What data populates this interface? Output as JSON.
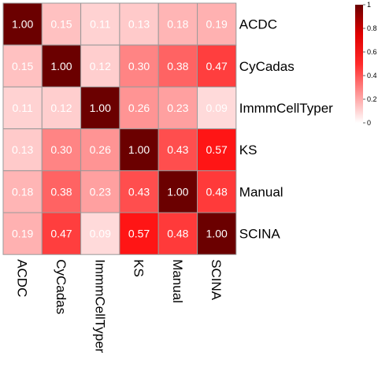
{
  "chart_data": {
    "type": "heatmap",
    "rows": [
      "ACDC",
      "CyCadas",
      "ImmmCellTyper",
      "KS",
      "Manual",
      "SCINA"
    ],
    "columns": [
      "ACDC",
      "CyCadas",
      "ImmmCellTyper",
      "KS",
      "Manual",
      "SCINA"
    ],
    "values": [
      [
        1.0,
        0.15,
        0.11,
        0.13,
        0.18,
        0.19
      ],
      [
        0.15,
        1.0,
        0.12,
        0.3,
        0.38,
        0.47
      ],
      [
        0.11,
        0.12,
        1.0,
        0.26,
        0.23,
        0.09
      ],
      [
        0.13,
        0.3,
        0.26,
        1.0,
        0.43,
        0.57
      ],
      [
        0.18,
        0.38,
        0.23,
        0.43,
        1.0,
        0.48
      ],
      [
        0.19,
        0.47,
        0.09,
        0.57,
        0.48,
        1.0
      ]
    ],
    "cell_labels": [
      [
        "1.00",
        "0.15",
        "0.11",
        "0.13",
        "0.18",
        "0.19"
      ],
      [
        "0.15",
        "1.00",
        "0.12",
        "0.30",
        "0.38",
        "0.47"
      ],
      [
        "0.11",
        "0.12",
        "1.00",
        "0.26",
        "0.23",
        "0.09"
      ],
      [
        "0.13",
        "0.30",
        "0.26",
        "1.00",
        "0.43",
        "0.57"
      ],
      [
        "0.18",
        "0.38",
        "0.23",
        "0.43",
        "1.00",
        "0.48"
      ],
      [
        "0.19",
        "0.47",
        "0.09",
        "0.57",
        "0.48",
        "1.00"
      ]
    ],
    "color_scale": {
      "min": 0,
      "max": 1,
      "colors": [
        "#ffffff",
        "#ff0000",
        "#6b0000"
      ]
    },
    "legend": {
      "ticks": [
        "0",
        "0.2",
        "0.4",
        "0.6",
        "0.8",
        "1"
      ],
      "placement": "right"
    },
    "title": "",
    "xlabel": "",
    "ylabel": ""
  }
}
